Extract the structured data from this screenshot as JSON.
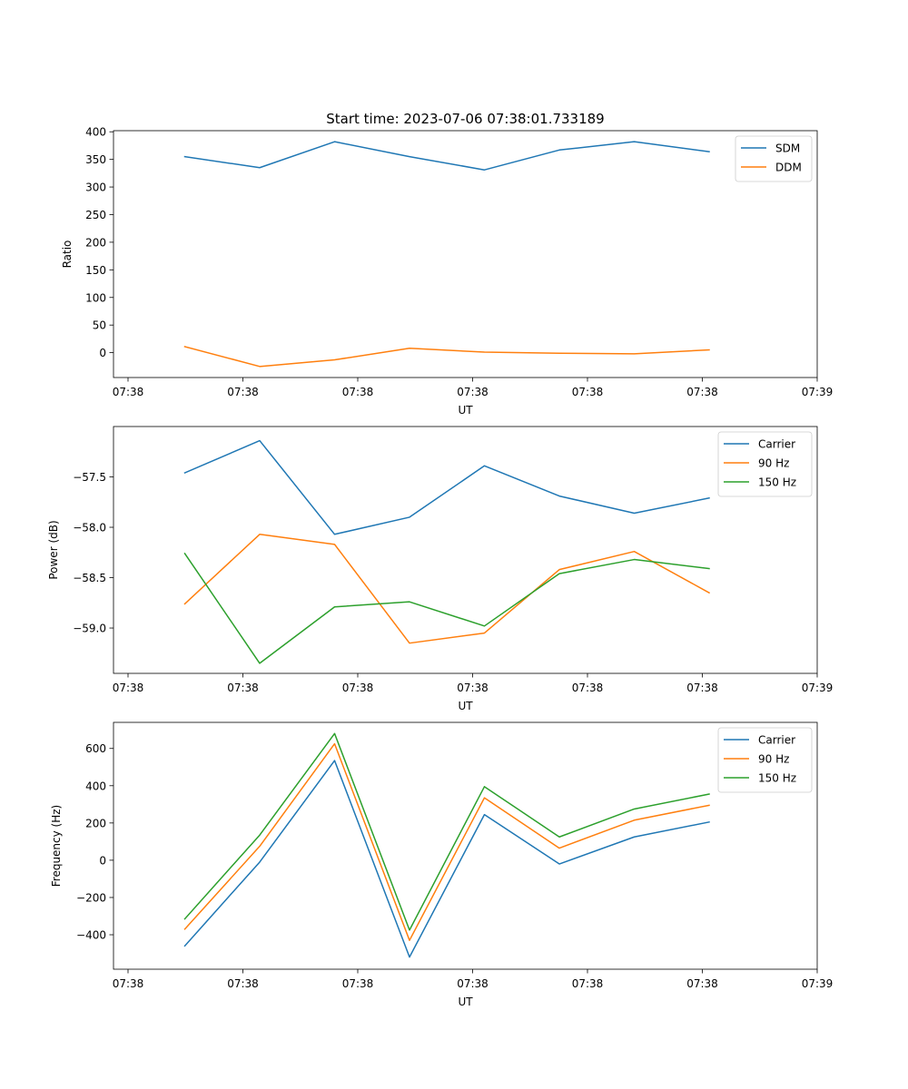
{
  "figure_title": "Start time: 2023-07-06 07:38:01.733189",
  "chart_data": [
    {
      "type": "line",
      "title": "Start time: 2023-07-06 07:38:01.733189",
      "xlabel": "UT",
      "ylabel": "Ratio",
      "x_tick_labels": [
        "07:38",
        "07:38",
        "07:38",
        "07:38",
        "07:38",
        "07:38",
        "07:39"
      ],
      "y_ticks": [
        0,
        50,
        100,
        150,
        200,
        250,
        300,
        350,
        400
      ],
      "y_tick_labels": [
        "0",
        "50",
        "100",
        "150",
        "200",
        "250",
        "300",
        "350",
        "400"
      ],
      "ylim": [
        -45,
        402
      ],
      "legend_position": "top-right",
      "series": [
        {
          "name": "SDM",
          "color": "#1f77b4",
          "values": [
            355,
            335,
            382,
            355,
            331,
            367,
            382,
            364
          ]
        },
        {
          "name": "DDM",
          "color": "#ff7f0e",
          "values": [
            11,
            -25,
            -13,
            8,
            1,
            -1,
            -2,
            5
          ]
        }
      ]
    },
    {
      "type": "line",
      "title": "",
      "xlabel": "UT",
      "ylabel": "Power (dB)",
      "x_tick_labels": [
        "07:38",
        "07:38",
        "07:38",
        "07:38",
        "07:38",
        "07:38",
        "07:39"
      ],
      "y_ticks": [
        -59.0,
        -58.5,
        -58.0,
        -57.5
      ],
      "y_tick_labels": [
        "−59.0",
        "−58.5",
        "−58.0",
        "−57.5"
      ],
      "ylim": [
        -59.45,
        -57.0
      ],
      "legend_position": "top-right",
      "series": [
        {
          "name": "Carrier",
          "color": "#1f77b4",
          "values": [
            -57.46,
            -57.14,
            -58.07,
            -57.9,
            -57.39,
            -57.69,
            -57.86,
            -57.71
          ]
        },
        {
          "name": "90 Hz",
          "color": "#ff7f0e",
          "values": [
            -58.76,
            -58.07,
            -58.17,
            -59.15,
            -59.05,
            -58.42,
            -58.24,
            -58.65
          ]
        },
        {
          "name": "150 Hz",
          "color": "#2ca02c",
          "values": [
            -58.26,
            -59.35,
            -58.79,
            -58.74,
            -58.98,
            -58.46,
            -58.32,
            -58.41
          ]
        }
      ]
    },
    {
      "type": "line",
      "title": "",
      "xlabel": "UT",
      "ylabel": "Frequency (Hz)",
      "x_tick_labels": [
        "07:38",
        "07:38",
        "07:38",
        "07:38",
        "07:38",
        "07:38",
        "07:39"
      ],
      "y_ticks": [
        -400,
        -200,
        0,
        200,
        400,
        600
      ],
      "y_tick_labels": [
        "−400",
        "−200",
        "0",
        "200",
        "400",
        "600"
      ],
      "ylim": [
        -585,
        740
      ],
      "legend_position": "top-right",
      "series": [
        {
          "name": "Carrier",
          "color": "#1f77b4",
          "values": [
            -460,
            -10,
            535,
            -520,
            245,
            -20,
            125,
            205
          ]
        },
        {
          "name": "90 Hz",
          "color": "#ff7f0e",
          "values": [
            -370,
            75,
            625,
            -430,
            335,
            65,
            215,
            295
          ]
        },
        {
          "name": "150 Hz",
          "color": "#2ca02c",
          "values": [
            -315,
            135,
            680,
            -375,
            395,
            125,
            275,
            355
          ]
        }
      ]
    }
  ]
}
